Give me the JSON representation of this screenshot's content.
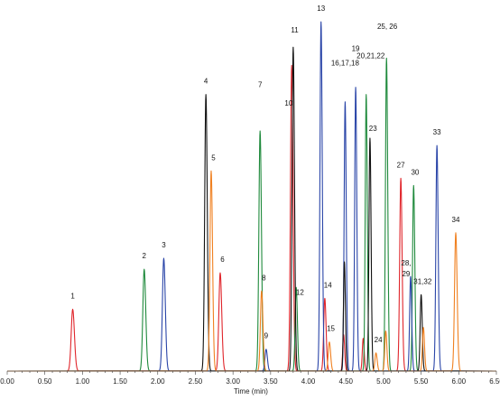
{
  "chart_data": {
    "type": "line",
    "xlabel": "Time (min)",
    "ylabel": "",
    "xlim": [
      0,
      6.5
    ],
    "ylim": [
      0,
      100
    ],
    "grid": false,
    "legend": "none",
    "x_ticks": [
      0,
      0.5,
      1.0,
      1.5,
      2.0,
      2.5,
      3.0,
      3.5,
      4.0,
      4.5,
      5.0,
      5.5,
      6.0,
      6.5
    ],
    "x_tick_labels": [
      "0.00",
      "0.50",
      "1.00",
      "1.50",
      "2.00",
      "2.50",
      "3.00",
      "3.50",
      "4.00",
      "4.50",
      "5.00",
      "5.50",
      "6.00",
      "6.50"
    ],
    "series": [
      {
        "color": "#e0252b",
        "peaks": [
          {
            "x": 0.87,
            "h": 17,
            "w": 0.02
          },
          {
            "x": 2.83,
            "h": 27,
            "w": 0.018
          },
          {
            "x": 3.78,
            "h": 84,
            "w": 0.016
          },
          {
            "x": 4.22,
            "h": 20,
            "w": 0.015
          },
          {
            "x": 4.47,
            "h": 10,
            "w": 0.012
          },
          {
            "x": 4.73,
            "h": 9,
            "w": 0.012
          },
          {
            "x": 5.23,
            "h": 53,
            "w": 0.015
          }
        ]
      },
      {
        "color": "#1f8a3c",
        "peaks": [
          {
            "x": 1.82,
            "h": 28,
            "w": 0.018
          },
          {
            "x": 3.36,
            "h": 66,
            "w": 0.016
          },
          {
            "x": 3.84,
            "h": 23,
            "w": 0.014
          },
          {
            "x": 4.77,
            "h": 76,
            "w": 0.013
          },
          {
            "x": 5.04,
            "h": 86,
            "w": 0.014
          },
          {
            "x": 5.4,
            "h": 51,
            "w": 0.014
          }
        ]
      },
      {
        "color": "#2a45a8",
        "peaks": [
          {
            "x": 2.08,
            "h": 31,
            "w": 0.018
          },
          {
            "x": 3.44,
            "h": 6,
            "w": 0.015
          },
          {
            "x": 4.17,
            "h": 96,
            "w": 0.014
          },
          {
            "x": 4.49,
            "h": 74,
            "w": 0.013
          },
          {
            "x": 4.63,
            "h": 78,
            "w": 0.013
          },
          {
            "x": 5.36,
            "h": 26,
            "w": 0.013
          },
          {
            "x": 5.71,
            "h": 62,
            "w": 0.014
          }
        ]
      },
      {
        "color": "#111111",
        "peaks": [
          {
            "x": 2.64,
            "h": 76,
            "w": 0.016
          },
          {
            "x": 3.8,
            "h": 89,
            "w": 0.015
          },
          {
            "x": 4.48,
            "h": 30,
            "w": 0.012
          },
          {
            "x": 4.82,
            "h": 64,
            "w": 0.013
          },
          {
            "x": 5.5,
            "h": 21,
            "w": 0.013
          }
        ]
      },
      {
        "color": "#f08020",
        "peaks": [
          {
            "x": 2.71,
            "h": 55,
            "w": 0.016
          },
          {
            "x": 3.38,
            "h": 22,
            "w": 0.016
          },
          {
            "x": 4.28,
            "h": 8,
            "w": 0.015
          },
          {
            "x": 4.9,
            "h": 5,
            "w": 0.014
          },
          {
            "x": 5.03,
            "h": 11,
            "w": 0.013
          },
          {
            "x": 5.53,
            "h": 12,
            "w": 0.013
          },
          {
            "x": 5.96,
            "h": 38,
            "w": 0.016
          }
        ]
      }
    ],
    "peak_labels": [
      {
        "text": "1",
        "x": 0.87,
        "y": 20
      },
      {
        "text": "2",
        "x": 1.82,
        "y": 31
      },
      {
        "text": "3",
        "x": 2.08,
        "y": 34
      },
      {
        "text": "4",
        "x": 2.64,
        "y": 79
      },
      {
        "text": "5",
        "x": 2.74,
        "y": 58
      },
      {
        "text": "6",
        "x": 2.86,
        "y": 30
      },
      {
        "text": "7",
        "x": 3.36,
        "y": 78
      },
      {
        "text": "8",
        "x": 3.41,
        "y": 25
      },
      {
        "text": "9",
        "x": 3.44,
        "y": 9
      },
      {
        "text": "10",
        "x": 3.74,
        "y": 73
      },
      {
        "text": "11",
        "x": 3.82,
        "y": 93
      },
      {
        "text": "12",
        "x": 3.89,
        "y": 21
      },
      {
        "text": "13",
        "x": 4.17,
        "y": 99
      },
      {
        "text": "14",
        "x": 4.26,
        "y": 23
      },
      {
        "text": "15",
        "x": 4.3,
        "y": 11
      },
      {
        "text": "16,17,18",
        "x": 4.49,
        "y": 84
      },
      {
        "text": "19",
        "x": 4.63,
        "y": 88
      },
      {
        "text": "20,21,22",
        "x": 4.83,
        "y": 86
      },
      {
        "text": "23",
        "x": 4.86,
        "y": 66
      },
      {
        "text": "24",
        "x": 4.93,
        "y": 8
      },
      {
        "text": "25, 26",
        "x": 5.05,
        "y": 94
      },
      {
        "text": "27",
        "x": 5.23,
        "y": 56
      },
      {
        "text": "28,",
        "x": 5.3,
        "y": 29
      },
      {
        "text": "29",
        "x": 5.3,
        "y": 26
      },
      {
        "text": "30",
        "x": 5.42,
        "y": 54
      },
      {
        "text": "31,32",
        "x": 5.52,
        "y": 24
      },
      {
        "text": "33",
        "x": 5.71,
        "y": 65
      },
      {
        "text": "34",
        "x": 5.96,
        "y": 41
      }
    ]
  }
}
